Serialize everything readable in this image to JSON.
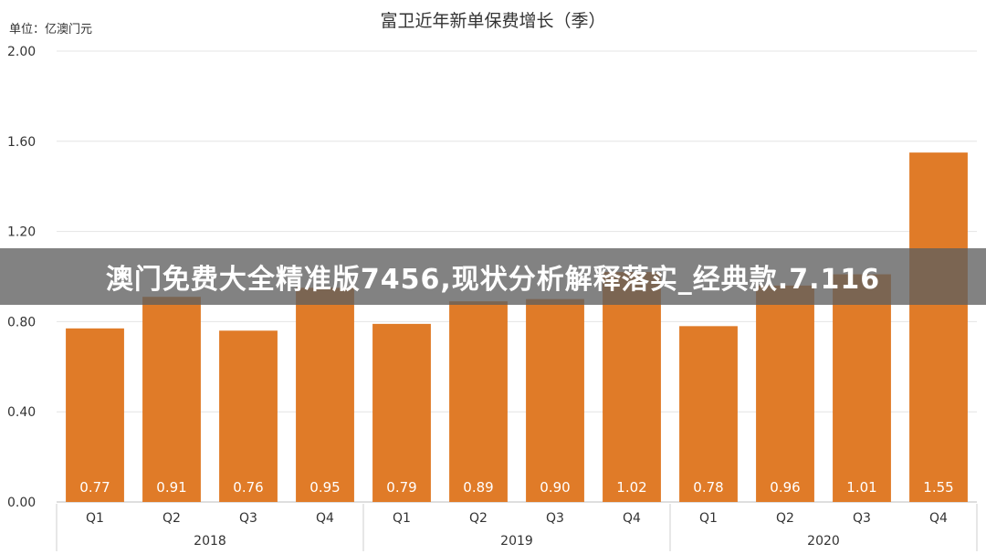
{
  "chart_data": {
    "type": "bar",
    "title": "富卫近年新单保费增长（季）",
    "unit_label": "单位：亿澳门元",
    "categories": [
      "Q1",
      "Q2",
      "Q3",
      "Q4",
      "Q1",
      "Q2",
      "Q3",
      "Q4",
      "Q1",
      "Q2",
      "Q3",
      "Q4"
    ],
    "groups": [
      {
        "label": "2018",
        "count": 4
      },
      {
        "label": "2019",
        "count": 4
      },
      {
        "label": "2020",
        "count": 4
      }
    ],
    "values": [
      0.77,
      0.91,
      0.76,
      0.95,
      0.79,
      0.89,
      0.9,
      1.02,
      0.78,
      0.96,
      1.01,
      1.55
    ],
    "value_labels": [
      "0.77",
      "0.91",
      "0.76",
      "0.95",
      "0.79",
      "0.89",
      "0.90",
      "1.02",
      "0.78",
      "0.96",
      "1.01",
      "1.55"
    ],
    "yticks": [
      "0.00",
      "0.40",
      "0.80",
      "1.20",
      "1.60",
      "2.00"
    ],
    "ylim": [
      0,
      2.0
    ],
    "grid": true,
    "bar_color": "#e07b28"
  },
  "overlay": {
    "text": "澳门免费大全精准版7456,现状分析解释落实_经典款.7.116"
  }
}
